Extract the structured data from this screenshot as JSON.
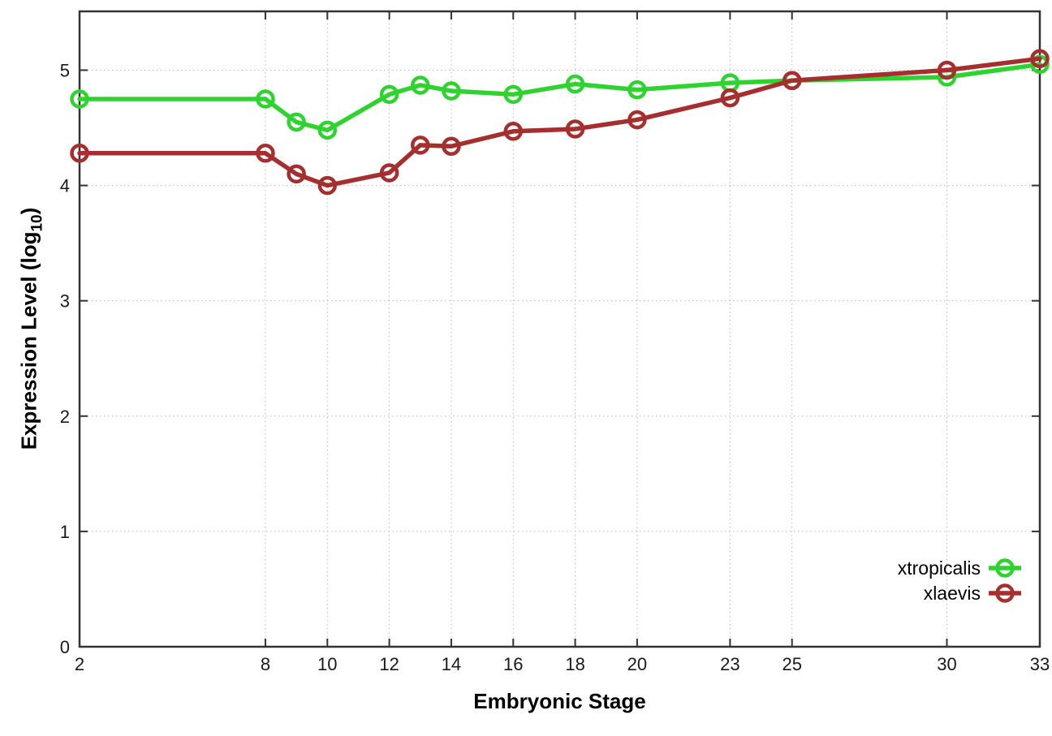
{
  "chart_data": {
    "type": "line",
    "title": "",
    "xlabel": "Embryonic Stage",
    "ylabel": "Expression Level (log10)",
    "ylabel_parts": {
      "main": "Expression Level (log",
      "sub": "10",
      "close": ")"
    },
    "xlim": [
      2,
      33
    ],
    "ylim": [
      0,
      5.51
    ],
    "xticks": [
      2,
      8,
      10,
      12,
      14,
      16,
      18,
      20,
      23,
      25,
      30,
      33
    ],
    "yticks": [
      0,
      1,
      2,
      3,
      4,
      5
    ],
    "grid": true,
    "legend_position": "inside-right",
    "x": [
      2,
      8,
      9,
      10,
      12,
      13,
      14,
      16,
      18,
      20,
      23,
      25,
      30,
      33
    ],
    "series": [
      {
        "name": "xtropicalis",
        "color": "#2fd32f",
        "values": [
          4.75,
          4.75,
          4.55,
          4.48,
          4.79,
          4.87,
          4.82,
          4.79,
          4.88,
          4.83,
          4.89,
          4.91,
          4.94,
          5.05
        ]
      },
      {
        "name": "xlaevis",
        "color": "#a52f2f",
        "values": [
          4.28,
          4.28,
          4.1,
          4.0,
          4.11,
          4.35,
          4.34,
          4.47,
          4.49,
          4.57,
          4.76,
          4.91,
          5.0,
          5.1
        ]
      }
    ],
    "style_colors": {
      "border": "#333333",
      "grid": "#b9b9b9",
      "tick_label": "#1a1a1a",
      "legend_text": "#000000"
    }
  }
}
